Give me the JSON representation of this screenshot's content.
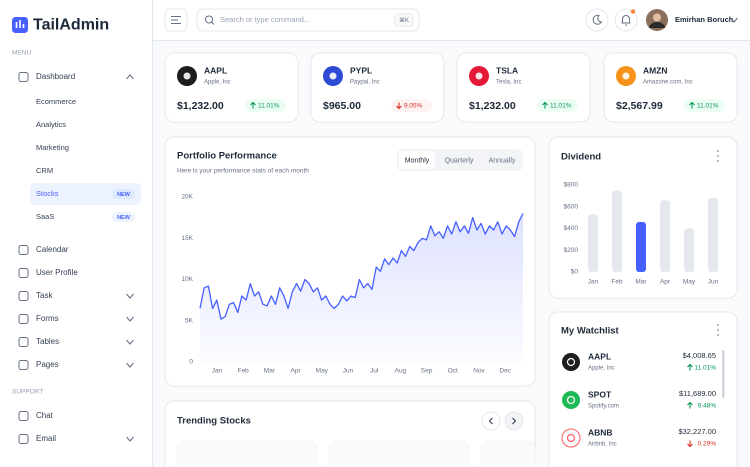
{
  "brand": "TailAdmin",
  "sidebar": {
    "menu_label": "MENU",
    "menu": [
      {
        "label": "Dashboard",
        "chevron": "up",
        "children": [
          {
            "label": "Ecommerce"
          },
          {
            "label": "Analytics"
          },
          {
            "label": "Marketing"
          },
          {
            "label": "CRM"
          },
          {
            "label": "Stocks",
            "badge": "NEW",
            "active": true
          },
          {
            "label": "SaaS",
            "badge": "NEW"
          }
        ]
      },
      {
        "label": "Calendar"
      },
      {
        "label": "User Profile"
      },
      {
        "label": "Task",
        "chevron": "down"
      },
      {
        "label": "Forms",
        "chevron": "down"
      },
      {
        "label": "Tables",
        "chevron": "down"
      },
      {
        "label": "Pages",
        "chevron": "down"
      }
    ],
    "support_label": "SUPPORT",
    "support": [
      {
        "label": "Chat"
      },
      {
        "label": "Email",
        "chevron": "down"
      }
    ]
  },
  "header": {
    "search_placeholder": "Search or type command...",
    "shortcut": "⌘K",
    "user": "Emirhan Boruch"
  },
  "stocks": [
    {
      "symbol": "AAPL",
      "name": "Apple, Inc",
      "price": "$1,232.00",
      "change": "11.01%",
      "direction": "up",
      "icon_color": "#1d1d1f"
    },
    {
      "symbol": "PYPL",
      "name": "Paypal, Inc",
      "price": "$965.00",
      "change": "9.05%",
      "direction": "down",
      "icon_color": "#2f4bd6"
    },
    {
      "symbol": "TSLA",
      "name": "Tesla, Inc",
      "price": "$1,232.00",
      "change": "11.01%",
      "direction": "up",
      "icon_color": "#e31937"
    },
    {
      "symbol": "AMZN",
      "name": "Amazone.com, Inc",
      "price": "$2,567.99",
      "change": "11.01%",
      "direction": "up",
      "icon_color": "#f7931a"
    }
  ],
  "portfolio": {
    "title": "Portfolio Performance",
    "subtitle": "Here is your performance stats of each month",
    "tabs": [
      {
        "label": "Monthly",
        "active": true
      },
      {
        "label": "Quarterly"
      },
      {
        "label": "Annually"
      }
    ],
    "chart": {
      "type": "line",
      "color": "#465fff",
      "categories": [
        "Jan",
        "Feb",
        "Mar",
        "Apr",
        "May",
        "Jun",
        "Jul",
        "Aug",
        "Sep",
        "Oct",
        "Nov",
        "Dec"
      ],
      "values": [
        6500,
        9000,
        9200,
        6500,
        7500,
        5200,
        5500,
        7000,
        7200,
        6000,
        8000,
        7500,
        9500,
        8000,
        8500,
        7000,
        6800,
        8000,
        7000,
        9000,
        8000,
        6500,
        8500,
        9500,
        8600,
        10000,
        9500,
        8500,
        9000,
        7500,
        8000,
        7000,
        6500,
        7000,
        8000,
        7400,
        8000,
        7800,
        10000,
        9000,
        9500,
        8800,
        11500,
        11000,
        12500,
        11800,
        12600,
        12000,
        13500,
        12800,
        14000,
        13500,
        14500,
        15000,
        14800,
        16500,
        15300,
        15800,
        15000,
        16500,
        15500,
        17000,
        15800,
        16500,
        15600,
        17500,
        16000,
        16800,
        15500,
        16500,
        16000,
        17000,
        15500,
        16500,
        16000,
        15200,
        17000,
        18000
      ],
      "ylim": [
        0,
        20000
      ],
      "yticks": [
        0,
        {
          "value": 5000,
          "label": "5K"
        },
        {
          "value": 10000,
          "label": "10K"
        },
        {
          "value": 15000,
          "label": "15K"
        },
        {
          "value": 20000,
          "label": "20K"
        }
      ]
    }
  },
  "dividend": {
    "title": "Dividend",
    "chart": {
      "type": "bar",
      "categories": [
        "Jan",
        "Feb",
        "Mar",
        "Apr",
        "May",
        "Jun"
      ],
      "values": [
        530,
        750,
        460,
        660,
        400,
        680
      ],
      "colors": [
        "#e4e7ec",
        "#e4e7ec",
        "#465fff",
        "#e4e7ec",
        "#e4e7ec",
        "#e4e7ec"
      ],
      "ylim": [
        0,
        800
      ],
      "yticks": [
        {
          "value": 0,
          "label": "$0"
        },
        {
          "value": 200,
          "label": "$200"
        },
        {
          "value": 400,
          "label": "$400"
        },
        {
          "value": 600,
          "label": "$600"
        },
        {
          "value": 800,
          "label": "$800"
        }
      ]
    }
  },
  "watchlist": {
    "title": "My Watchlist",
    "items": [
      {
        "symbol": "AAPL",
        "name": "Apple, Inc",
        "price": "$4,008.65",
        "change": "11.01%",
        "direction": "up",
        "icon_color": "#1d1d1f"
      },
      {
        "symbol": "SPOT",
        "name": "Spotify.com",
        "price": "$11,689.00",
        "change": "9.48%",
        "direction": "up",
        "icon_color": "#1db954"
      },
      {
        "symbol": "ABNB",
        "name": "Airbnb, Inc",
        "price": "$32,227.00",
        "change": "0.29%",
        "direction": "down",
        "icon_color": "#ff5a5f"
      }
    ]
  },
  "trending": {
    "title": "Trending Stocks"
  }
}
